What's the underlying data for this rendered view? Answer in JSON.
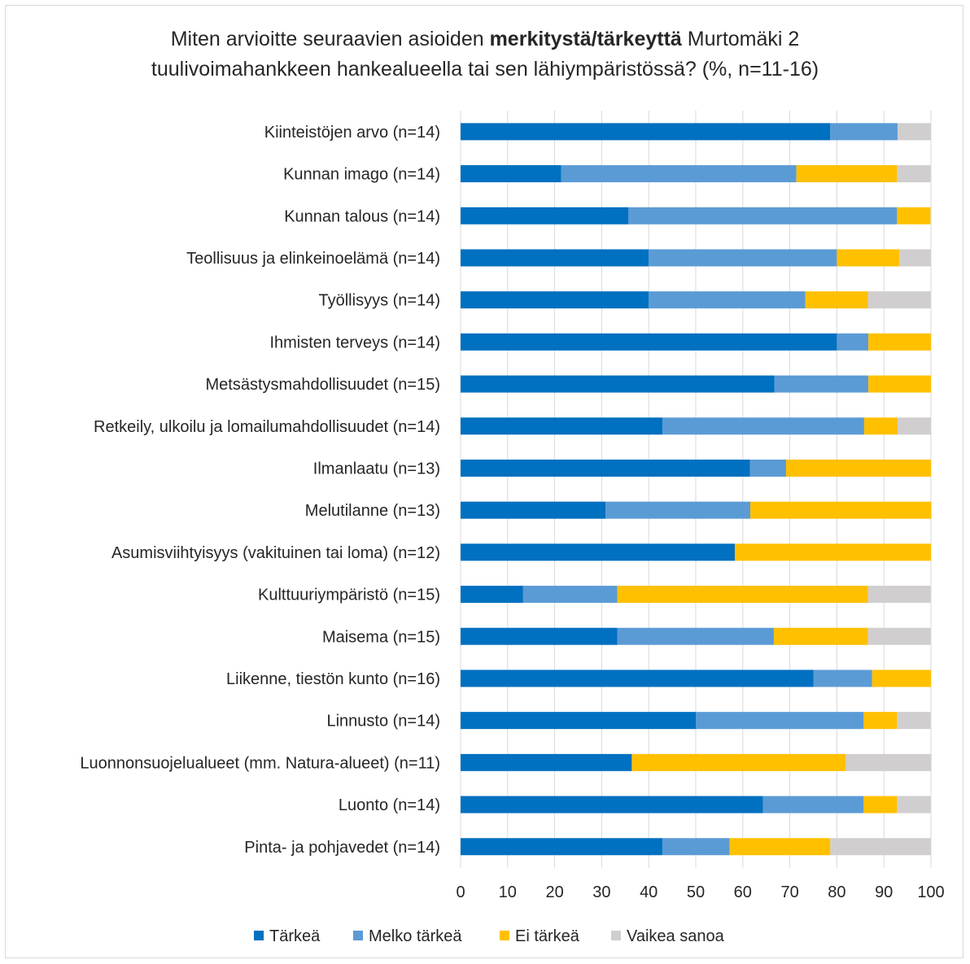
{
  "title": {
    "line1_before": "Miten arvioitte seuraavien asioiden ",
    "line1_bold": "merkitystä/tärkeyttä",
    "line1_after": " Murtomäki 2",
    "line2": "tuulivoimahankkeen hankealueella tai sen lähiympäristössä? (%, n=11-16)"
  },
  "chart_data": {
    "type": "bar",
    "orientation": "horizontal",
    "stacked": true,
    "title": "Miten arvioitte seuraavien asioiden merkitystä/tärkeyttä Murtomäki 2 tuulivoimahankkeen hankealueella tai sen lähiympäristössä? (%, n=11-16)",
    "categories": [
      "Kiinteistöjen arvo  (n=14)",
      "Kunnan imago  (n=14)",
      "Kunnan talous  (n=14)",
      "Teollisuus ja elinkeinoelämä  (n=14)",
      "Työllisyys  (n=14)",
      "Ihmisten terveys  (n=14)",
      "Metsästysmahdollisuudet  (n=15)",
      "Retkeily, ulkoilu ja lomailumahdollisuudet  (n=14)",
      "Ilmanlaatu  (n=13)",
      "Melutilanne  (n=13)",
      "Asumisviihtyisyys (vakituinen tai loma)  (n=12)",
      "Kulttuuriympäristö  (n=15)",
      "Maisema  (n=15)",
      "Liikenne, tiestön kunto  (n=16)",
      "Linnusto  (n=14)",
      "Luonnonsuojelualueet (mm. Natura-alueet)  (n=11)",
      "Luonto  (n=14)",
      "Pinta- ja pohjavedet  (n=14)"
    ],
    "series": [
      {
        "name": "Tärkeä",
        "color": "#0070c0",
        "values": [
          78.6,
          21.4,
          35.7,
          40.0,
          40.0,
          80.0,
          66.7,
          42.9,
          61.5,
          30.8,
          58.3,
          13.3,
          33.3,
          75.0,
          50.0,
          36.4,
          64.3,
          42.9
        ]
      },
      {
        "name": "Melko tärkeä",
        "color": "#5b9bd5",
        "values": [
          14.3,
          50.0,
          57.1,
          40.0,
          33.3,
          6.7,
          20.0,
          42.9,
          7.7,
          30.8,
          0,
          20.0,
          33.3,
          12.5,
          35.7,
          0,
          21.4,
          14.3
        ]
      },
      {
        "name": "Ei tärkeä",
        "color": "#ffc000",
        "values": [
          0,
          21.4,
          7.1,
          13.3,
          13.3,
          13.3,
          13.3,
          7.1,
          30.8,
          38.5,
          41.7,
          53.3,
          20.0,
          12.5,
          7.1,
          45.5,
          7.1,
          21.4
        ]
      },
      {
        "name": "Vaikea sanoa",
        "color": "#d0cece",
        "values": [
          7.1,
          7.1,
          0,
          6.7,
          13.3,
          0,
          0,
          7.1,
          0,
          0,
          0,
          13.3,
          13.3,
          0,
          7.1,
          18.2,
          7.1,
          21.4
        ]
      }
    ],
    "xlim": [
      0,
      100
    ],
    "xticks": [
      "0",
      "10",
      "20",
      "30",
      "40",
      "50",
      "60",
      "70",
      "80",
      "90",
      "100"
    ],
    "grid": true,
    "legend": "bottom"
  }
}
